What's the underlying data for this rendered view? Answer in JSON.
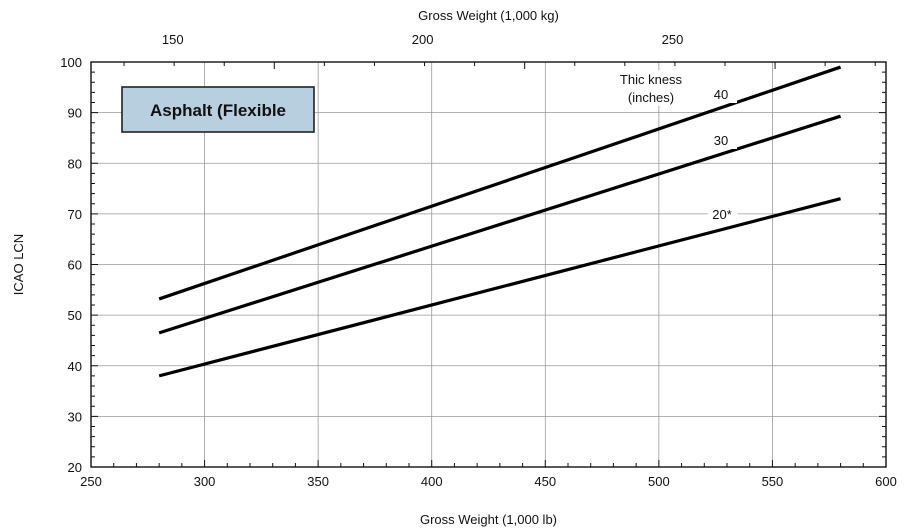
{
  "chart_data": {
    "type": "line",
    "top_axis_title": "Gross Weight (1,000 kg)",
    "xlabel": "Gross Weight (1,000 lb)",
    "ylabel": "ICAO LCN",
    "xlim": [
      250,
      600
    ],
    "ylim": [
      20,
      100
    ],
    "x_ticks": [
      "250",
      "300",
      "350",
      "400",
      "450",
      "500",
      "550",
      "600"
    ],
    "y_ticks": [
      "20",
      "30",
      "40",
      "50",
      "60",
      "70",
      "80",
      "90",
      "100"
    ],
    "top_ticks": [
      {
        "label": "150",
        "lb": 286
      },
      {
        "label": "200",
        "lb": 396
      },
      {
        "label": "250",
        "lb": 506
      }
    ],
    "grid": true,
    "box_label": "Asphalt (Flexible",
    "legend_title_lines": [
      "Thic kness",
      "(inches)"
    ],
    "series": [
      {
        "name": "40",
        "x": [
          280,
          580
        ],
        "y": [
          53.2,
          99.0
        ]
      },
      {
        "name": "30",
        "x": [
          280,
          580
        ],
        "y": [
          46.5,
          89.3
        ]
      },
      {
        "name": "20*",
        "x": [
          280,
          580
        ],
        "y": [
          38.0,
          73.0
        ]
      }
    ],
    "colors": {
      "line": "#000000",
      "box_fill": "#b8cfe0"
    }
  }
}
